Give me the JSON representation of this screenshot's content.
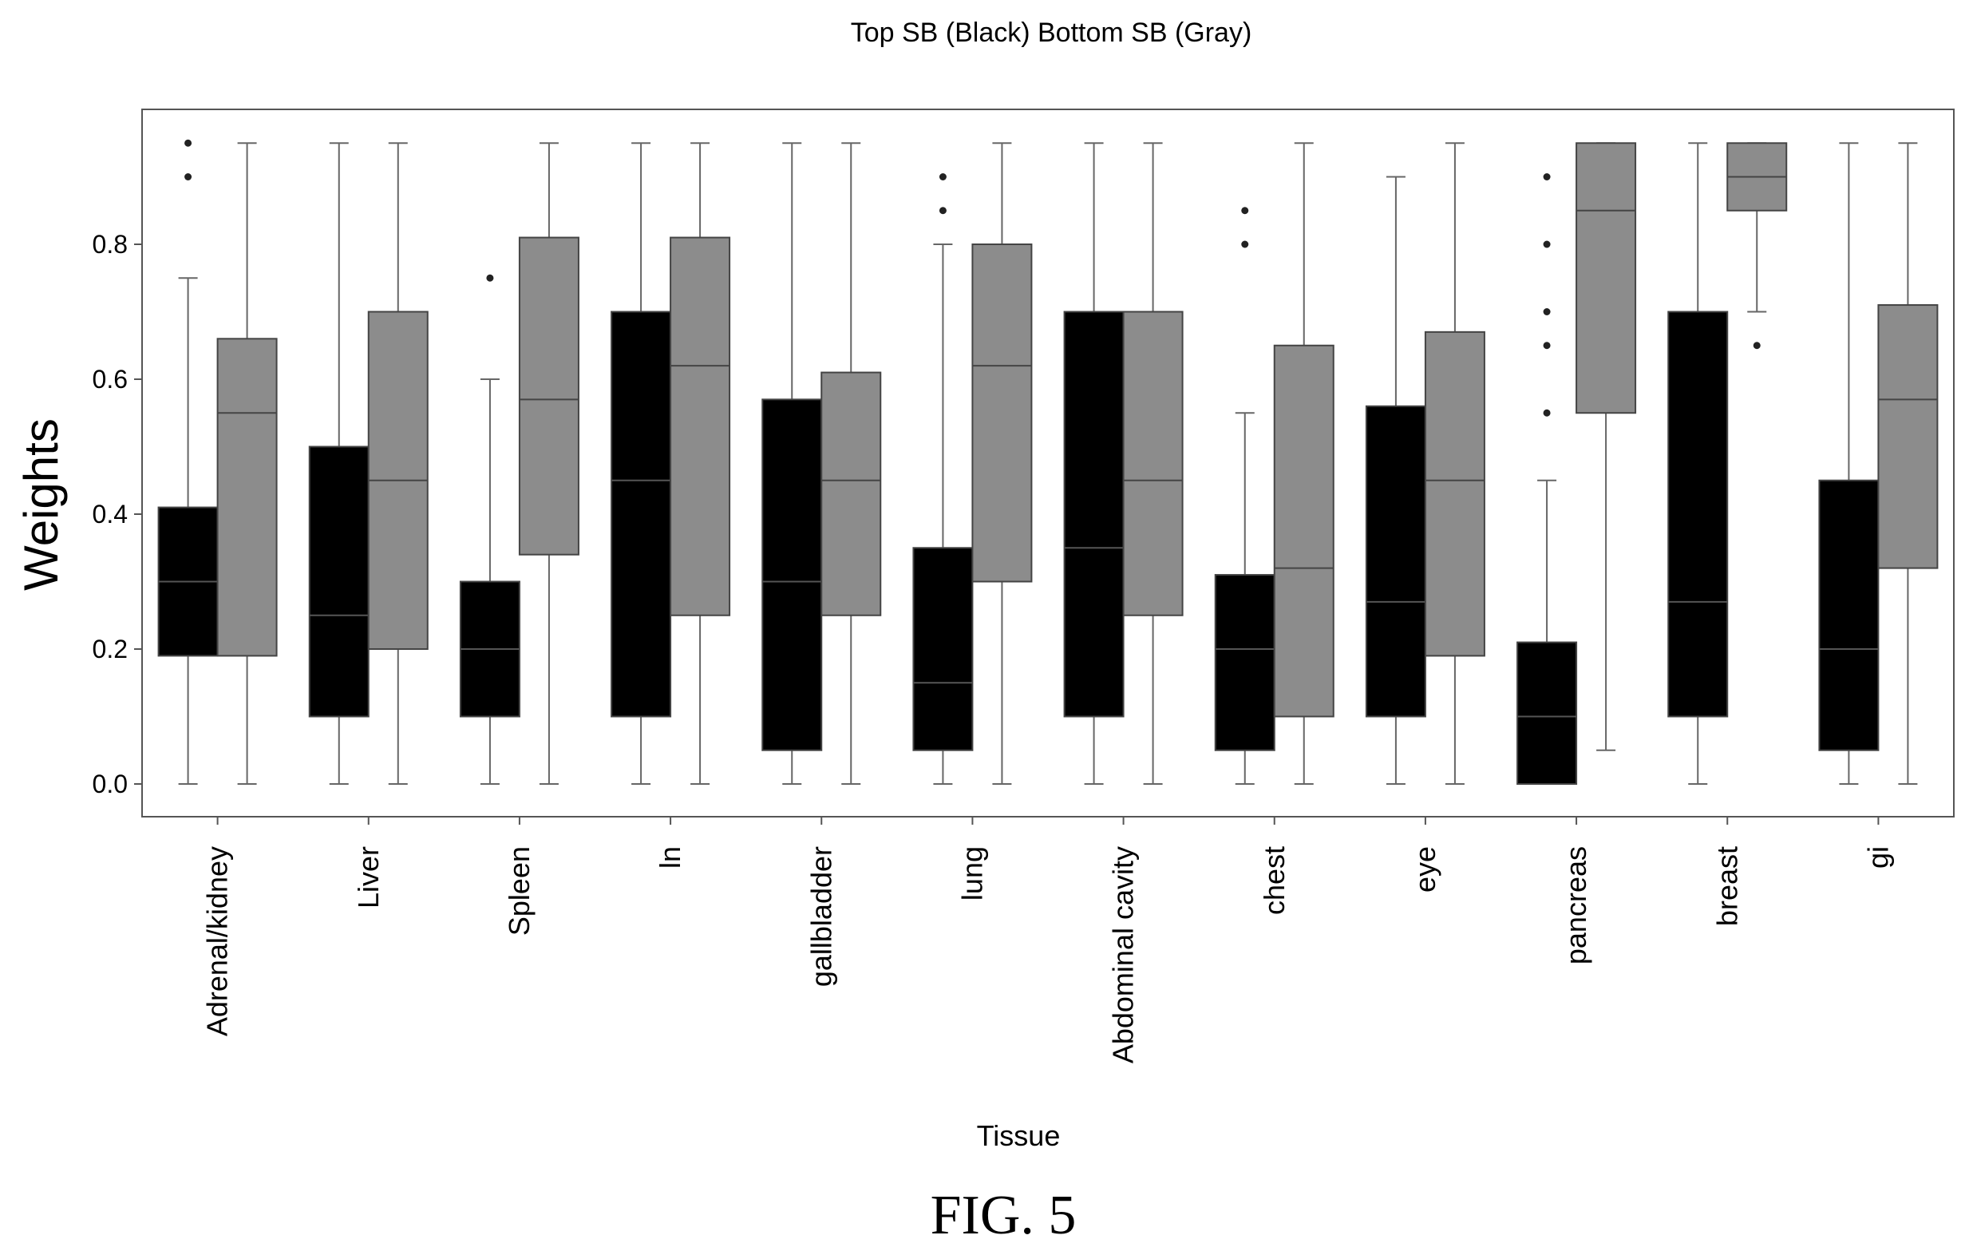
{
  "figure": {
    "caption": "FIG. 5"
  },
  "chart_data": {
    "type": "boxplot",
    "title": "Top SB (Black) Bottom SB (Gray)",
    "xlabel": "Tissue",
    "ylabel": "Weights",
    "ylim": [
      -0.05,
      1.0
    ],
    "yticks": [
      "0.0",
      "0.2",
      "0.4",
      "0.6",
      "0.8"
    ],
    "ytick_values": [
      0.0,
      0.2,
      0.4,
      0.6,
      0.8
    ],
    "grid": false,
    "series_colors": {
      "top": "#000000",
      "bottom": "#8c8c8c"
    },
    "categories": [
      "Adrenal/kidney",
      "Liver",
      "Spleen",
      "ln",
      "gallbladder",
      "lung",
      "Abdominal cavity",
      "chest",
      "eye",
      "pancreas",
      "breast",
      "gi"
    ],
    "series": [
      {
        "key": "top",
        "boxes": [
          {
            "whislo": 0.0,
            "q1": 0.19,
            "med": 0.3,
            "q3": 0.41,
            "whishi": 0.75,
            "fliers": [
              0.9,
              0.95
            ]
          },
          {
            "whislo": 0.0,
            "q1": 0.1,
            "med": 0.25,
            "q3": 0.5,
            "whishi": 0.95,
            "fliers": []
          },
          {
            "whislo": 0.0,
            "q1": 0.1,
            "med": 0.2,
            "q3": 0.3,
            "whishi": 0.6,
            "fliers": [
              0.75
            ]
          },
          {
            "whislo": 0.0,
            "q1": 0.1,
            "med": 0.45,
            "q3": 0.7,
            "whishi": 0.95,
            "fliers": []
          },
          {
            "whislo": 0.0,
            "q1": 0.05,
            "med": 0.3,
            "q3": 0.57,
            "whishi": 0.95,
            "fliers": []
          },
          {
            "whislo": 0.0,
            "q1": 0.05,
            "med": 0.15,
            "q3": 0.35,
            "whishi": 0.8,
            "fliers": [
              0.85,
              0.9
            ]
          },
          {
            "whislo": 0.0,
            "q1": 0.1,
            "med": 0.35,
            "q3": 0.7,
            "whishi": 0.95,
            "fliers": []
          },
          {
            "whislo": 0.0,
            "q1": 0.05,
            "med": 0.2,
            "q3": 0.31,
            "whishi": 0.55,
            "fliers": [
              0.8,
              0.85
            ]
          },
          {
            "whislo": 0.0,
            "q1": 0.1,
            "med": 0.27,
            "q3": 0.56,
            "whishi": 0.9,
            "fliers": []
          },
          {
            "whislo": 0.0,
            "q1": 0.0,
            "med": 0.1,
            "q3": 0.21,
            "whishi": 0.45,
            "fliers": [
              0.55,
              0.65,
              0.7,
              0.8,
              0.9
            ]
          },
          {
            "whislo": 0.0,
            "q1": 0.1,
            "med": 0.27,
            "q3": 0.7,
            "whishi": 0.95,
            "fliers": []
          },
          {
            "whislo": 0.0,
            "q1": 0.05,
            "med": 0.2,
            "q3": 0.45,
            "whishi": 0.95,
            "fliers": []
          }
        ]
      },
      {
        "key": "bottom",
        "boxes": [
          {
            "whislo": 0.0,
            "q1": 0.19,
            "med": 0.55,
            "q3": 0.66,
            "whishi": 0.95,
            "fliers": []
          },
          {
            "whislo": 0.0,
            "q1": 0.2,
            "med": 0.45,
            "q3": 0.7,
            "whishi": 0.95,
            "fliers": []
          },
          {
            "whislo": 0.0,
            "q1": 0.34,
            "med": 0.57,
            "q3": 0.81,
            "whishi": 0.95,
            "fliers": []
          },
          {
            "whislo": 0.0,
            "q1": 0.25,
            "med": 0.62,
            "q3": 0.81,
            "whishi": 0.95,
            "fliers": []
          },
          {
            "whislo": 0.0,
            "q1": 0.25,
            "med": 0.45,
            "q3": 0.61,
            "whishi": 0.95,
            "fliers": []
          },
          {
            "whislo": 0.0,
            "q1": 0.3,
            "med": 0.62,
            "q3": 0.8,
            "whishi": 0.95,
            "fliers": []
          },
          {
            "whislo": 0.0,
            "q1": 0.25,
            "med": 0.45,
            "q3": 0.7,
            "whishi": 0.95,
            "fliers": []
          },
          {
            "whislo": 0.0,
            "q1": 0.1,
            "med": 0.32,
            "q3": 0.65,
            "whishi": 0.95,
            "fliers": []
          },
          {
            "whislo": 0.0,
            "q1": 0.19,
            "med": 0.45,
            "q3": 0.67,
            "whishi": 0.95,
            "fliers": []
          },
          {
            "whislo": 0.05,
            "q1": 0.55,
            "med": 0.85,
            "q3": 0.95,
            "whishi": 0.95,
            "fliers": []
          },
          {
            "whislo": 0.7,
            "q1": 0.85,
            "med": 0.9,
            "q3": 0.95,
            "whishi": 0.95,
            "fliers": [
              0.65
            ]
          },
          {
            "whislo": 0.0,
            "q1": 0.32,
            "med": 0.57,
            "q3": 0.71,
            "whishi": 0.95,
            "fliers": []
          }
        ]
      }
    ]
  }
}
